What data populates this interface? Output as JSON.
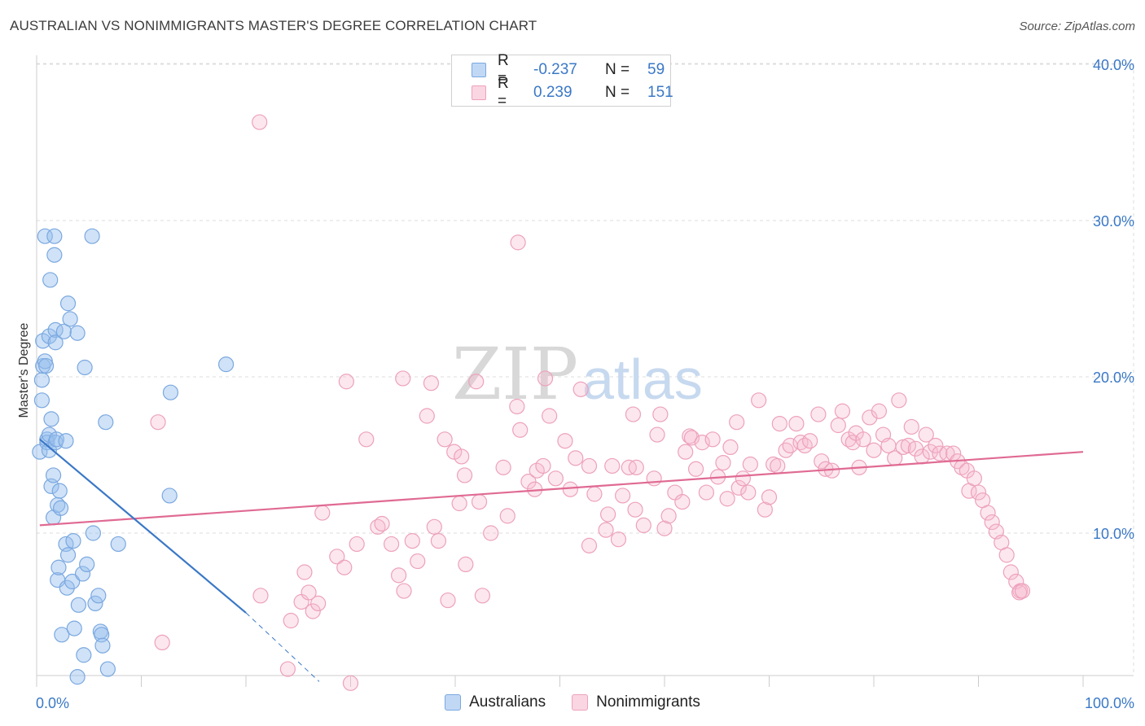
{
  "title": "AUSTRALIAN VS NONIMMIGRANTS MASTER'S DEGREE CORRELATION CHART",
  "source": "Source: ZipAtlas.com",
  "watermark": {
    "zip": "ZIP",
    "atlas": "atlas"
  },
  "colors": {
    "blue": "#3a78c6",
    "blue_fill": "rgba(151,190,238,0.45)",
    "blue_stroke": "#7aa8e0",
    "pink": "#e06a93",
    "pink_fill": "rgba(246,186,206,0.35)",
    "pink_stroke": "#eda1bc",
    "axis_text": "#3a78c6",
    "grid": "#dddddd"
  },
  "legend": {
    "rows": [
      {
        "r_label": "R =",
        "r_value": "-0.237",
        "n_label": "N =",
        "n_value": "59",
        "color": "blue"
      },
      {
        "r_label": "R =",
        "r_value": "0.239",
        "n_label": "N =",
        "n_value": "151",
        "color": "pink"
      }
    ]
  },
  "bottom_legend": [
    {
      "label": "Australians",
      "color": "blue"
    },
    {
      "label": "Nonimmigrants",
      "color": "pink"
    }
  ],
  "chart_data": {
    "type": "scatter",
    "title": "AUSTRALIAN VS NONIMMIGRANTS MASTER'S DEGREE CORRELATION CHART",
    "xlabel": "",
    "ylabel": "Master's Degree",
    "xlim": [
      0,
      100
    ],
    "ylim": [
      0,
      42
    ],
    "x_tick_labels": [
      "0.0%",
      "100.0%"
    ],
    "y_ticks": [
      10,
      20,
      30,
      40
    ],
    "y_tick_labels": [
      "10.0%",
      "20.0%",
      "30.0%",
      "40.0%"
    ],
    "grid": true,
    "series": [
      {
        "name": "Australians",
        "color": "blue",
        "r": -0.237,
        "n": 59,
        "trend": {
          "x0": 0.3,
          "y0": 16.0,
          "x1": 20.0,
          "y1": 4.9,
          "dash_to_x": 27.0,
          "dash_to_y": 0.5
        },
        "points": [
          [
            0.3,
            15.2
          ],
          [
            0.5,
            19.8
          ],
          [
            0.5,
            18.5
          ],
          [
            0.6,
            22.3
          ],
          [
            0.6,
            20.7
          ],
          [
            0.8,
            29.0
          ],
          [
            0.8,
            21.0
          ],
          [
            0.9,
            20.7
          ],
          [
            1.0,
            16.0
          ],
          [
            1.0,
            15.8
          ],
          [
            1.2,
            22.6
          ],
          [
            1.2,
            16.3
          ],
          [
            1.2,
            15.3
          ],
          [
            1.3,
            26.2
          ],
          [
            1.4,
            13.0
          ],
          [
            1.4,
            17.3
          ],
          [
            1.6,
            13.7
          ],
          [
            1.6,
            11.0
          ],
          [
            1.7,
            29.0
          ],
          [
            1.7,
            27.8
          ],
          [
            1.8,
            23.0
          ],
          [
            1.8,
            22.2
          ],
          [
            1.8,
            15.8
          ],
          [
            1.9,
            16.0
          ],
          [
            2.0,
            11.8
          ],
          [
            2.0,
            7.0
          ],
          [
            2.1,
            7.8
          ],
          [
            2.2,
            12.7
          ],
          [
            2.3,
            11.6
          ],
          [
            2.4,
            3.5
          ],
          [
            2.6,
            22.9
          ],
          [
            2.8,
            15.9
          ],
          [
            2.8,
            9.3
          ],
          [
            2.9,
            6.5
          ],
          [
            3.0,
            8.6
          ],
          [
            3.0,
            24.7
          ],
          [
            3.2,
            23.7
          ],
          [
            3.4,
            6.9
          ],
          [
            3.5,
            9.5
          ],
          [
            3.6,
            3.9
          ],
          [
            3.9,
            22.8
          ],
          [
            3.9,
            0.8
          ],
          [
            4.0,
            5.4
          ],
          [
            4.4,
            7.4
          ],
          [
            4.5,
            2.2
          ],
          [
            4.6,
            20.6
          ],
          [
            4.8,
            8.0
          ],
          [
            5.3,
            29.0
          ],
          [
            5.4,
            10.0
          ],
          [
            5.6,
            5.5
          ],
          [
            5.9,
            6.0
          ],
          [
            6.1,
            3.7
          ],
          [
            6.2,
            3.5
          ],
          [
            6.3,
            2.8
          ],
          [
            6.6,
            17.1
          ],
          [
            6.8,
            1.3
          ],
          [
            7.8,
            9.3
          ],
          [
            18.1,
            20.8
          ],
          [
            12.7,
            12.4
          ]
        ],
        "extra_point": [
          12.8,
          19.0
        ]
      },
      {
        "name": "Nonimmigrants",
        "color": "pink",
        "r": 0.239,
        "n": 151,
        "trend": {
          "x0": 0.3,
          "y0": 10.5,
          "x1": 100.0,
          "y1": 15.2
        },
        "points": [
          [
            21.3,
            36.3
          ],
          [
            46.0,
            28.6
          ],
          [
            12.0,
            3.0
          ],
          [
            11.6,
            17.1
          ],
          [
            21.4,
            6.0
          ],
          [
            24.0,
            1.3
          ],
          [
            24.3,
            4.4
          ],
          [
            25.3,
            5.6
          ],
          [
            25.6,
            7.5
          ],
          [
            26.0,
            6.2
          ],
          [
            26.4,
            5.0
          ],
          [
            26.9,
            5.5
          ],
          [
            27.3,
            11.3
          ],
          [
            28.7,
            8.5
          ],
          [
            29.4,
            7.8
          ],
          [
            29.6,
            19.7
          ],
          [
            30.0,
            0.4
          ],
          [
            30.6,
            9.3
          ],
          [
            31.5,
            16.0
          ],
          [
            32.6,
            10.4
          ],
          [
            33.0,
            10.6
          ],
          [
            33.9,
            9.3
          ],
          [
            34.6,
            7.3
          ],
          [
            35.0,
            19.9
          ],
          [
            35.1,
            6.3
          ],
          [
            35.9,
            9.5
          ],
          [
            36.4,
            8.2
          ],
          [
            37.3,
            17.5
          ],
          [
            37.7,
            19.6
          ],
          [
            38.0,
            10.4
          ],
          [
            38.4,
            9.5
          ],
          [
            39.0,
            16.0
          ],
          [
            39.3,
            5.7
          ],
          [
            39.9,
            15.2
          ],
          [
            40.4,
            11.9
          ],
          [
            40.6,
            14.9
          ],
          [
            40.9,
            13.7
          ],
          [
            41.0,
            8.0
          ],
          [
            42.0,
            19.7
          ],
          [
            42.3,
            12.0
          ],
          [
            42.6,
            6.0
          ],
          [
            43.4,
            10.0
          ],
          [
            44.6,
            14.2
          ],
          [
            45.0,
            11.1
          ],
          [
            45.9,
            18.1
          ],
          [
            46.2,
            16.6
          ],
          [
            47.0,
            13.3
          ],
          [
            47.6,
            12.8
          ],
          [
            47.8,
            14.0
          ],
          [
            48.4,
            14.3
          ],
          [
            48.6,
            19.9
          ],
          [
            49.0,
            17.5
          ],
          [
            49.6,
            13.5
          ],
          [
            50.5,
            15.9
          ],
          [
            51.0,
            12.8
          ],
          [
            51.5,
            14.8
          ],
          [
            52.0,
            19.2
          ],
          [
            52.8,
            14.3
          ],
          [
            52.8,
            9.2
          ],
          [
            53.3,
            12.5
          ],
          [
            54.4,
            10.2
          ],
          [
            54.6,
            11.2
          ],
          [
            55.0,
            14.3
          ],
          [
            55.6,
            9.6
          ],
          [
            56.0,
            12.4
          ],
          [
            56.6,
            14.2
          ],
          [
            57.0,
            17.6
          ],
          [
            57.2,
            11.5
          ],
          [
            57.3,
            14.2
          ],
          [
            58.0,
            10.5
          ],
          [
            59.0,
            13.5
          ],
          [
            59.3,
            16.3
          ],
          [
            59.6,
            17.6
          ],
          [
            60.0,
            10.3
          ],
          [
            60.4,
            11.1
          ],
          [
            61.0,
            12.6
          ],
          [
            61.7,
            12.0
          ],
          [
            62.0,
            15.2
          ],
          [
            62.4,
            16.2
          ],
          [
            62.6,
            16.1
          ],
          [
            63.0,
            14.1
          ],
          [
            63.6,
            15.8
          ],
          [
            64.0,
            12.6
          ],
          [
            64.6,
            16.0
          ],
          [
            65.1,
            13.6
          ],
          [
            65.6,
            14.5
          ],
          [
            66.0,
            12.2
          ],
          [
            66.3,
            15.5
          ],
          [
            66.9,
            17.1
          ],
          [
            67.1,
            12.9
          ],
          [
            67.5,
            13.5
          ],
          [
            68.0,
            12.6
          ],
          [
            68.2,
            14.4
          ],
          [
            69.0,
            18.5
          ],
          [
            69.6,
            11.5
          ],
          [
            70.0,
            12.3
          ],
          [
            70.4,
            14.4
          ],
          [
            70.8,
            14.3
          ],
          [
            71.0,
            17.0
          ],
          [
            71.6,
            15.3
          ],
          [
            72.0,
            15.6
          ],
          [
            72.6,
            17.0
          ],
          [
            73.0,
            15.8
          ],
          [
            73.4,
            15.6
          ],
          [
            73.9,
            15.9
          ],
          [
            74.7,
            17.6
          ],
          [
            75.0,
            14.6
          ],
          [
            75.4,
            14.1
          ],
          [
            76.0,
            14.0
          ],
          [
            76.6,
            16.9
          ],
          [
            77.0,
            17.8
          ],
          [
            77.6,
            16.0
          ],
          [
            78.0,
            15.8
          ],
          [
            78.3,
            16.4
          ],
          [
            78.6,
            14.2
          ],
          [
            79.0,
            16.0
          ],
          [
            79.6,
            17.4
          ],
          [
            80.0,
            15.3
          ],
          [
            80.5,
            17.8
          ],
          [
            80.9,
            16.3
          ],
          [
            81.4,
            15.6
          ],
          [
            82.0,
            14.8
          ],
          [
            82.4,
            18.5
          ],
          [
            82.8,
            15.5
          ],
          [
            83.3,
            15.6
          ],
          [
            83.6,
            16.8
          ],
          [
            84.0,
            15.4
          ],
          [
            84.6,
            14.9
          ],
          [
            85.0,
            16.3
          ],
          [
            85.4,
            15.2
          ],
          [
            85.9,
            15.6
          ],
          [
            86.3,
            15.1
          ],
          [
            87.0,
            15.1
          ],
          [
            87.6,
            15.1
          ],
          [
            88.0,
            14.6
          ],
          [
            88.4,
            14.2
          ],
          [
            88.9,
            14.0
          ],
          [
            89.1,
            12.7
          ],
          [
            89.6,
            13.5
          ],
          [
            90.0,
            12.6
          ],
          [
            90.4,
            12.1
          ],
          [
            90.9,
            11.3
          ],
          [
            91.3,
            10.7
          ],
          [
            91.7,
            10.1
          ],
          [
            92.2,
            9.4
          ],
          [
            92.7,
            8.6
          ],
          [
            93.1,
            7.5
          ],
          [
            93.6,
            6.9
          ],
          [
            94.0,
            6.3
          ],
          [
            93.9,
            6.2
          ],
          [
            94.2,
            6.3
          ]
        ]
      }
    ]
  }
}
